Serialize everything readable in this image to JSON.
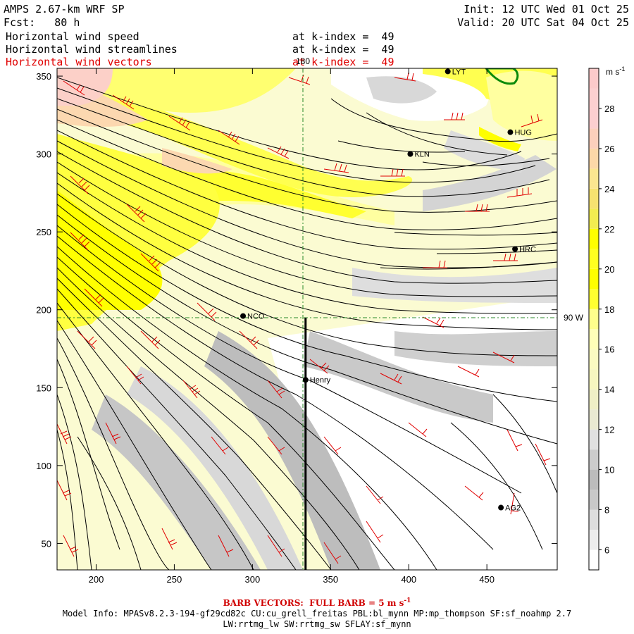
{
  "header": {
    "model": "AMPS 2.67-km WRF SP",
    "forecast_label": "Fcst:",
    "forecast_hours": "80 h",
    "init_label": "Init:",
    "init_time": "12 UTC Wed 01 Oct 25",
    "valid_label": "Valid:",
    "valid_time": "20 UTC Sat 04 Oct 25",
    "fields": [
      {
        "name": "Horizontal wind speed",
        "level": "at k-index =  49"
      },
      {
        "name": "Horizontal wind streamlines",
        "level": "at k-index =  49"
      },
      {
        "name": "Horizontal wind vectors",
        "level": "at k-index =  49"
      }
    ]
  },
  "map": {
    "x_ticks": [
      200,
      250,
      300,
      350,
      400,
      450
    ],
    "y_ticks": [
      50,
      100,
      150,
      200,
      250,
      300,
      350
    ],
    "x_range": [
      175,
      495
    ],
    "y_range": [
      33,
      355
    ],
    "meridian_label": "180",
    "parallel_label": "90 W",
    "stations": [
      {
        "name": "NCO",
        "x": 294,
        "y": 196
      },
      {
        "name": "Henry",
        "x": 334,
        "y": 155
      },
      {
        "name": "KLN",
        "x": 401,
        "y": 300
      },
      {
        "name": "HUG",
        "x": 465,
        "y": 314
      },
      {
        "name": "HRC",
        "x": 468,
        "y": 239
      },
      {
        "name": "AG2",
        "x": 459,
        "y": 73
      },
      {
        "name": "LYT",
        "x": 425,
        "y": 353
      }
    ],
    "cross_section_x": 334
  },
  "colorbar": {
    "unit": "m s",
    "unit_exponent": "-1",
    "labels": [
      6,
      8,
      10,
      12,
      14,
      16,
      18,
      20,
      22,
      24,
      26,
      28
    ],
    "bins": [
      {
        "from": 5,
        "to": 6,
        "color": "#ffffff"
      },
      {
        "from": 6,
        "to": 7,
        "color": "#ededed"
      },
      {
        "from": 7,
        "to": 8,
        "color": "#dddddd"
      },
      {
        "from": 8,
        "to": 9,
        "color": "#c8c8c8"
      },
      {
        "from": 9,
        "to": 10,
        "color": "#bcbcbc"
      },
      {
        "from": 10,
        "to": 11,
        "color": "#cccccc"
      },
      {
        "from": 11,
        "to": 12,
        "color": "#e0e0e0"
      },
      {
        "from": 12,
        "to": 13,
        "color": "#e9e9d2"
      },
      {
        "from": 13,
        "to": 14,
        "color": "#efefc6"
      },
      {
        "from": 14,
        "to": 15,
        "color": "#f6f6c0"
      },
      {
        "from": 15,
        "to": 16,
        "color": "#fbfbc2"
      },
      {
        "from": 16,
        "to": 17,
        "color": "#ffffb8"
      },
      {
        "from": 17,
        "to": 18,
        "color": "#ffff8c"
      },
      {
        "from": 18,
        "to": 19,
        "color": "#ffff30"
      },
      {
        "from": 19,
        "to": 20,
        "color": "#ffff00"
      },
      {
        "from": 20,
        "to": 21,
        "color": "#ffff20"
      },
      {
        "from": 21,
        "to": 22,
        "color": "#ffff00"
      },
      {
        "from": 22,
        "to": 23,
        "color": "#f2ec50"
      },
      {
        "from": 23,
        "to": 24,
        "color": "#f6e270"
      },
      {
        "from": 24,
        "to": 25,
        "color": "#fbe690"
      },
      {
        "from": 25,
        "to": 26,
        "color": "#fcd8a8"
      },
      {
        "from": 26,
        "to": 27,
        "color": "#fcd0bc"
      },
      {
        "from": 27,
        "to": 28,
        "color": "#fccfd0"
      },
      {
        "from": 28,
        "to": 29,
        "color": "#fcd0d0"
      },
      {
        "from": 29,
        "to": 30,
        "color": "#fccaca"
      }
    ]
  },
  "footer": {
    "barb_note": "BARB VECTORS:  FULL BARB = 5 m s",
    "barb_exponent": "-1",
    "model_info": "Model Info: MPASv8.2.3-194-gf29cd82c CU:cu_grell_freitas PBL:bl_mynn MP:mp_thompson SF:sf_noahmp 2.7",
    "physics": "LW:rrtmg_lw SW:rrtmg_sw SFLAY:sf_mynn"
  }
}
